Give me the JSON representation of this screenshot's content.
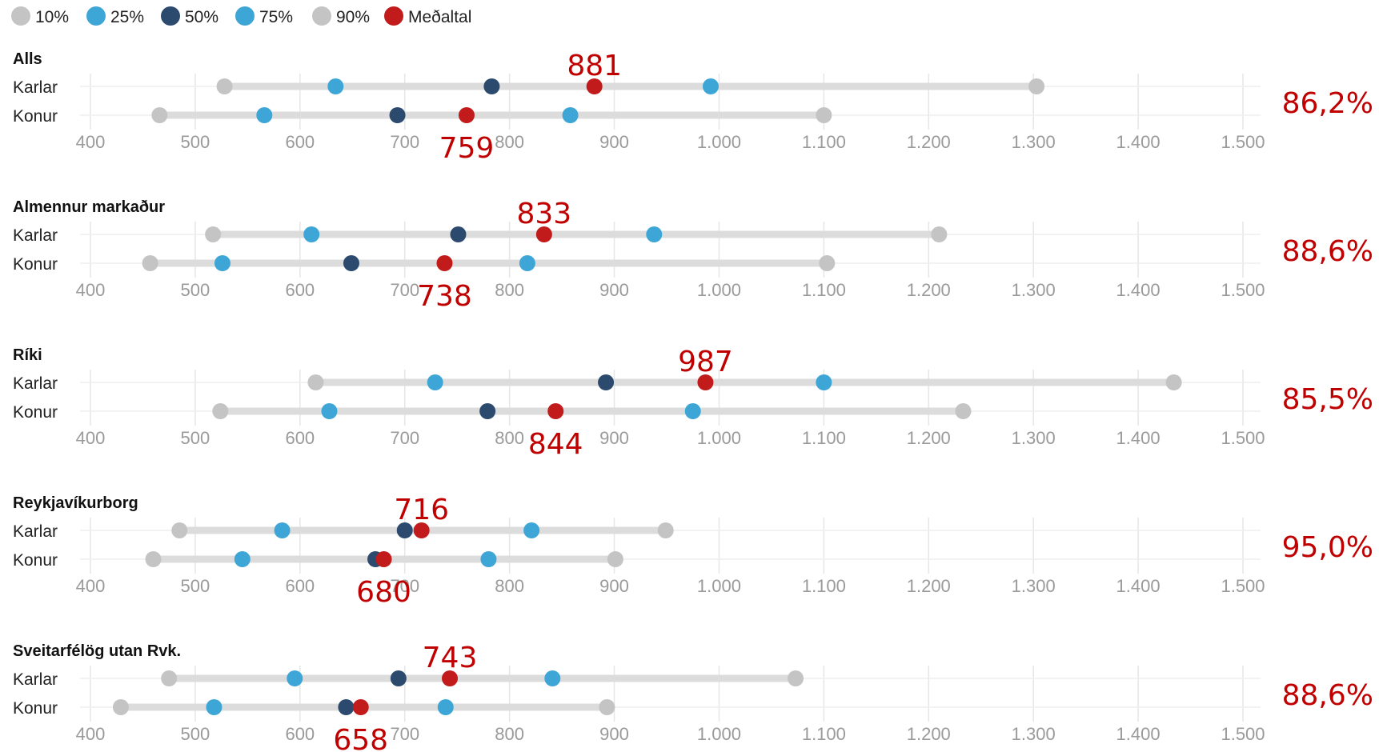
{
  "chart_data": {
    "type": "dot-range",
    "legend": [
      {
        "label": "10%",
        "color": "#c4c4c4"
      },
      {
        "label": "25%",
        "color": "#3ea6d6"
      },
      {
        "label": "50%",
        "color": "#2c4a6e"
      },
      {
        "label": "75%",
        "color": "#3ea6d6"
      },
      {
        "label": "90%",
        "color": "#c4c4c4"
      },
      {
        "label": "Meðaltal",
        "color": "#c11b1b"
      }
    ],
    "xlim": [
      400,
      1500
    ],
    "ticks": [
      400,
      500,
      600,
      700,
      800,
      900,
      1000,
      1100,
      1200,
      1300,
      1400,
      1500
    ],
    "tick_labels": [
      "400",
      "500",
      "600",
      "700",
      "800",
      "900",
      "1.000",
      "1.100",
      "1.200",
      "1.300",
      "1.400",
      "1.500"
    ],
    "panels": [
      {
        "title": "Alls",
        "ratio": "86,2%",
        "rows": [
          {
            "label": "Karlar",
            "p10": 528,
            "p25": 634,
            "p50": 783,
            "p75": 992,
            "p90": 1303,
            "mean": 881,
            "mean_label": "881"
          },
          {
            "label": "Konur",
            "p10": 466,
            "p25": 566,
            "p50": 693,
            "p75": 858,
            "p90": 1100,
            "mean": 759,
            "mean_label": "759"
          }
        ]
      },
      {
        "title": "Almennur markaður",
        "ratio": "88,6%",
        "rows": [
          {
            "label": "Karlar",
            "p10": 517,
            "p25": 611,
            "p50": 751,
            "p75": 938,
            "p90": 1210,
            "mean": 833,
            "mean_label": "833"
          },
          {
            "label": "Konur",
            "p10": 457,
            "p25": 526,
            "p50": 649,
            "p75": 817,
            "p90": 1103,
            "mean": 738,
            "mean_label": "738"
          }
        ]
      },
      {
        "title": "Ríki",
        "ratio": "85,5%",
        "rows": [
          {
            "label": "Karlar",
            "p10": 615,
            "p25": 729,
            "p50": 892,
            "p75": 1100,
            "p90": 1434,
            "mean": 987,
            "mean_label": "987"
          },
          {
            "label": "Konur",
            "p10": 524,
            "p25": 628,
            "p50": 779,
            "p75": 975,
            "p90": 1233,
            "mean": 844,
            "mean_label": "844"
          }
        ]
      },
      {
        "title": "Reykjavíkurborg",
        "ratio": "95,0%",
        "rows": [
          {
            "label": "Karlar",
            "p10": 485,
            "p25": 583,
            "p50": 700,
            "p75": 821,
            "p90": 949,
            "mean": 716,
            "mean_label": "716"
          },
          {
            "label": "Konur",
            "p10": 460,
            "p25": 545,
            "p50": 672,
            "p75": 780,
            "p90": 901,
            "mean": 680,
            "mean_label": "680"
          }
        ]
      },
      {
        "title": "Sveitarfélög utan Rvk.",
        "ratio": "88,6%",
        "rows": [
          {
            "label": "Karlar",
            "p10": 475,
            "p25": 595,
            "p50": 694,
            "p75": 841,
            "p90": 1073,
            "mean": 743,
            "mean_label": "743"
          },
          {
            "label": "Konur",
            "p10": 429,
            "p25": 518,
            "p50": 644,
            "p75": 739,
            "p90": 893,
            "mean": 658,
            "mean_label": "658"
          }
        ]
      }
    ]
  }
}
